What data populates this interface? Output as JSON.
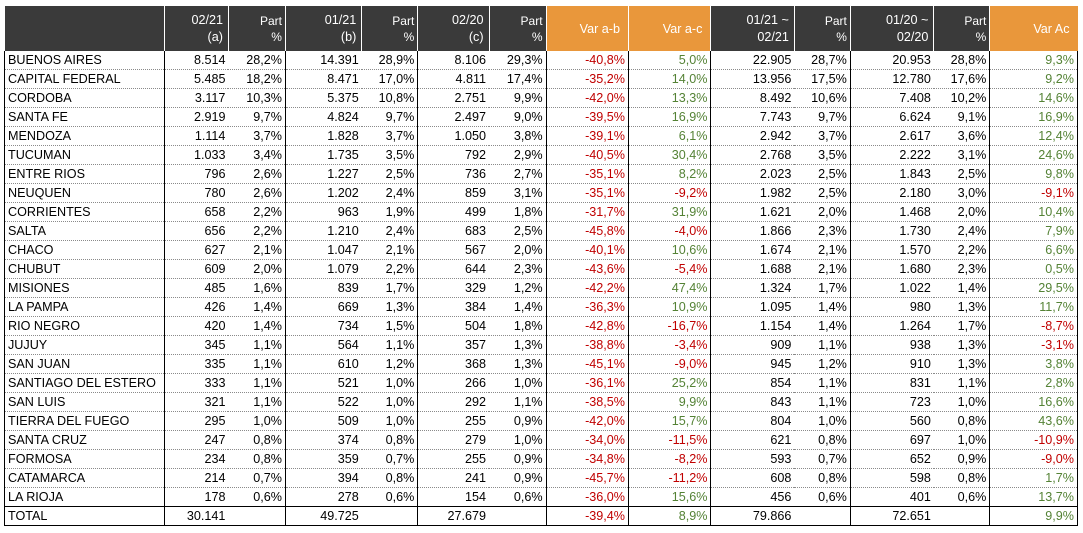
{
  "headers": [
    {
      "l1": "02/21",
      "l2": "(a)"
    },
    {
      "l1": "Part",
      "l2": "%"
    },
    {
      "l1": "01/21",
      "l2": "(b)"
    },
    {
      "l1": "Part",
      "l2": "%"
    },
    {
      "l1": "02/20",
      "l2": "(c)"
    },
    {
      "l1": "Part",
      "l2": "%"
    },
    {
      "l1": "Var a-b",
      "l2": ""
    },
    {
      "l1": "Var a-c",
      "l2": ""
    },
    {
      "l1": "01/21 ~",
      "l2": "02/21"
    },
    {
      "l1": "Part",
      "l2": "%"
    },
    {
      "l1": "01/20 ~",
      "l2": "02/20"
    },
    {
      "l1": "Part",
      "l2": "%"
    },
    {
      "l1": "Var Ac",
      "l2": ""
    }
  ],
  "rows": [
    [
      "BUENOS AIRES",
      "8.514",
      "28,2%",
      "14.391",
      "28,9%",
      "8.106",
      "29,3%",
      "-40,8%",
      "5,0%",
      "22.905",
      "28,7%",
      "20.953",
      "28,8%",
      "9,3%"
    ],
    [
      "CAPITAL FEDERAL",
      "5.485",
      "18,2%",
      "8.471",
      "17,0%",
      "4.811",
      "17,4%",
      "-35,2%",
      "14,0%",
      "13.956",
      "17,5%",
      "12.780",
      "17,6%",
      "9,2%"
    ],
    [
      "CORDOBA",
      "3.117",
      "10,3%",
      "5.375",
      "10,8%",
      "2.751",
      "9,9%",
      "-42,0%",
      "13,3%",
      "8.492",
      "10,6%",
      "7.408",
      "10,2%",
      "14,6%"
    ],
    [
      "SANTA FE",
      "2.919",
      "9,7%",
      "4.824",
      "9,7%",
      "2.497",
      "9,0%",
      "-39,5%",
      "16,9%",
      "7.743",
      "9,7%",
      "6.624",
      "9,1%",
      "16,9%"
    ],
    [
      "MENDOZA",
      "1.114",
      "3,7%",
      "1.828",
      "3,7%",
      "1.050",
      "3,8%",
      "-39,1%",
      "6,1%",
      "2.942",
      "3,7%",
      "2.617",
      "3,6%",
      "12,4%"
    ],
    [
      "TUCUMAN",
      "1.033",
      "3,4%",
      "1.735",
      "3,5%",
      "792",
      "2,9%",
      "-40,5%",
      "30,4%",
      "2.768",
      "3,5%",
      "2.222",
      "3,1%",
      "24,6%"
    ],
    [
      "ENTRE RIOS",
      "796",
      "2,6%",
      "1.227",
      "2,5%",
      "736",
      "2,7%",
      "-35,1%",
      "8,2%",
      "2.023",
      "2,5%",
      "1.843",
      "2,5%",
      "9,8%"
    ],
    [
      "NEUQUEN",
      "780",
      "2,6%",
      "1.202",
      "2,4%",
      "859",
      "3,1%",
      "-35,1%",
      "-9,2%",
      "1.982",
      "2,5%",
      "2.180",
      "3,0%",
      "-9,1%"
    ],
    [
      "CORRIENTES",
      "658",
      "2,2%",
      "963",
      "1,9%",
      "499",
      "1,8%",
      "-31,7%",
      "31,9%",
      "1.621",
      "2,0%",
      "1.468",
      "2,0%",
      "10,4%"
    ],
    [
      "SALTA",
      "656",
      "2,2%",
      "1.210",
      "2,4%",
      "683",
      "2,5%",
      "-45,8%",
      "-4,0%",
      "1.866",
      "2,3%",
      "1.730",
      "2,4%",
      "7,9%"
    ],
    [
      "CHACO",
      "627",
      "2,1%",
      "1.047",
      "2,1%",
      "567",
      "2,0%",
      "-40,1%",
      "10,6%",
      "1.674",
      "2,1%",
      "1.570",
      "2,2%",
      "6,6%"
    ],
    [
      "CHUBUT",
      "609",
      "2,0%",
      "1.079",
      "2,2%",
      "644",
      "2,3%",
      "-43,6%",
      "-5,4%",
      "1.688",
      "2,1%",
      "1.680",
      "2,3%",
      "0,5%"
    ],
    [
      "MISIONES",
      "485",
      "1,6%",
      "839",
      "1,7%",
      "329",
      "1,2%",
      "-42,2%",
      "47,4%",
      "1.324",
      "1,7%",
      "1.022",
      "1,4%",
      "29,5%"
    ],
    [
      "LA PAMPA",
      "426",
      "1,4%",
      "669",
      "1,3%",
      "384",
      "1,4%",
      "-36,3%",
      "10,9%",
      "1.095",
      "1,4%",
      "980",
      "1,3%",
      "11,7%"
    ],
    [
      "RIO NEGRO",
      "420",
      "1,4%",
      "734",
      "1,5%",
      "504",
      "1,8%",
      "-42,8%",
      "-16,7%",
      "1.154",
      "1,4%",
      "1.264",
      "1,7%",
      "-8,7%"
    ],
    [
      "JUJUY",
      "345",
      "1,1%",
      "564",
      "1,1%",
      "357",
      "1,3%",
      "-38,8%",
      "-3,4%",
      "909",
      "1,1%",
      "938",
      "1,3%",
      "-3,1%"
    ],
    [
      "SAN JUAN",
      "335",
      "1,1%",
      "610",
      "1,2%",
      "368",
      "1,3%",
      "-45,1%",
      "-9,0%",
      "945",
      "1,2%",
      "910",
      "1,3%",
      "3,8%"
    ],
    [
      "SANTIAGO DEL ESTERO",
      "333",
      "1,1%",
      "521",
      "1,0%",
      "266",
      "1,0%",
      "-36,1%",
      "25,2%",
      "854",
      "1,1%",
      "831",
      "1,1%",
      "2,8%"
    ],
    [
      "SAN LUIS",
      "321",
      "1,1%",
      "522",
      "1,0%",
      "292",
      "1,1%",
      "-38,5%",
      "9,9%",
      "843",
      "1,1%",
      "723",
      "1,0%",
      "16,6%"
    ],
    [
      "TIERRA DEL FUEGO",
      "295",
      "1,0%",
      "509",
      "1,0%",
      "255",
      "0,9%",
      "-42,0%",
      "15,7%",
      "804",
      "1,0%",
      "560",
      "0,8%",
      "43,6%"
    ],
    [
      "SANTA CRUZ",
      "247",
      "0,8%",
      "374",
      "0,8%",
      "279",
      "1,0%",
      "-34,0%",
      "-11,5%",
      "621",
      "0,8%",
      "697",
      "1,0%",
      "-10,9%"
    ],
    [
      "FORMOSA",
      "234",
      "0,8%",
      "359",
      "0,7%",
      "255",
      "0,9%",
      "-34,8%",
      "-8,2%",
      "593",
      "0,7%",
      "652",
      "0,9%",
      "-9,0%"
    ],
    [
      "CATAMARCA",
      "214",
      "0,7%",
      "394",
      "0,8%",
      "241",
      "0,9%",
      "-45,7%",
      "-11,2%",
      "608",
      "0,8%",
      "598",
      "0,8%",
      "1,7%"
    ],
    [
      "LA RIOJA",
      "178",
      "0,6%",
      "278",
      "0,6%",
      "154",
      "0,6%",
      "-36,0%",
      "15,6%",
      "456",
      "0,6%",
      "401",
      "0,6%",
      "13,7%"
    ]
  ],
  "total": [
    "TOTAL",
    "30.141",
    "",
    "49.725",
    "",
    "27.679",
    "",
    "-39,4%",
    "8,9%",
    "79.866",
    "",
    "72.651",
    "",
    "9,9%"
  ],
  "colors": {
    "header_bg": "#3a3a3a",
    "header_var_bg": "#e9973b",
    "negative": "#c00000",
    "positive": "#548235"
  }
}
